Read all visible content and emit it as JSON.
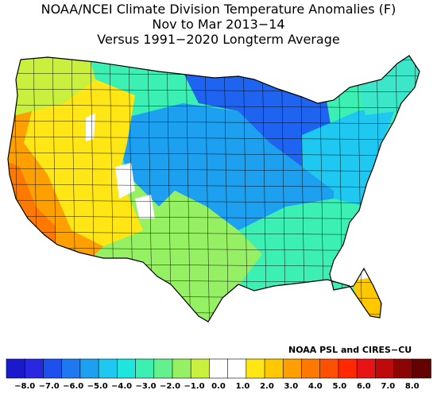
{
  "title": {
    "line1": "NOAA/NCEI Climate Division Temperature Anomalies (F)",
    "line2": "Nov to Mar 2013−14",
    "line3": "Versus 1991−2020 Longterm Average"
  },
  "credit": "NOAA PSL and CIRES−CU",
  "legend": {
    "colors": [
      "#1a1acc",
      "#2828e0",
      "#1e50f0",
      "#1e78f0",
      "#1ea0f0",
      "#1ec8f0",
      "#1ee6dc",
      "#3cf0b4",
      "#64f08c",
      "#96f064",
      "#c8f03c",
      "#ffffff",
      "#ffffff",
      "#ffe614",
      "#ffc800",
      "#ffa000",
      "#ff7800",
      "#ff5000",
      "#ff2800",
      "#e61414",
      "#be0a0a",
      "#8c0505",
      "#640000"
    ],
    "tick_labels": [
      "−8.0",
      "−7.0",
      "−6.0",
      "−5.0",
      "−4.0",
      "−3.0",
      "−2.0",
      "−1.0",
      "0.0",
      "1.0",
      "2.0",
      "3.0",
      "4.0",
      "5.0",
      "6.0",
      "7.0",
      "8.0"
    ]
  },
  "map_regions": [
    {
      "name": "northern-plains-cold-core",
      "color": "#1e3cf0",
      "anomaly_f": -7.0
    },
    {
      "name": "great-lakes-upper-midwest",
      "color": "#1e64f0",
      "anomaly_f": -6.0
    },
    {
      "name": "central-plains-ohio-valley",
      "color": "#1ea0f0",
      "anomaly_f": -4.5
    },
    {
      "name": "southern-appalachians-northeast",
      "color": "#1ec8f0",
      "anomaly_f": -3.5
    },
    {
      "name": "gulf-coast-southeast",
      "color": "#3cf0b4",
      "anomaly_f": -2.5
    },
    {
      "name": "southern-plains-southwest",
      "color": "#96f064",
      "anomaly_f": -1.5
    },
    {
      "name": "new-england",
      "color": "#3ce6c8",
      "anomaly_f": -3.0
    },
    {
      "name": "florida-peninsula",
      "color": "#ffc800",
      "anomaly_f": 1.5
    },
    {
      "name": "great-basin-rockies",
      "color": "#ffe614",
      "anomaly_f": 1.0
    },
    {
      "name": "california-nevada",
      "color": "#ffa000",
      "anomaly_f": 2.5
    },
    {
      "name": "southern-california-coast",
      "color": "#ff7800",
      "anomaly_f": 3.5
    },
    {
      "name": "pacific-northwest",
      "color": "#c8f03c",
      "anomaly_f": -0.5
    }
  ]
}
